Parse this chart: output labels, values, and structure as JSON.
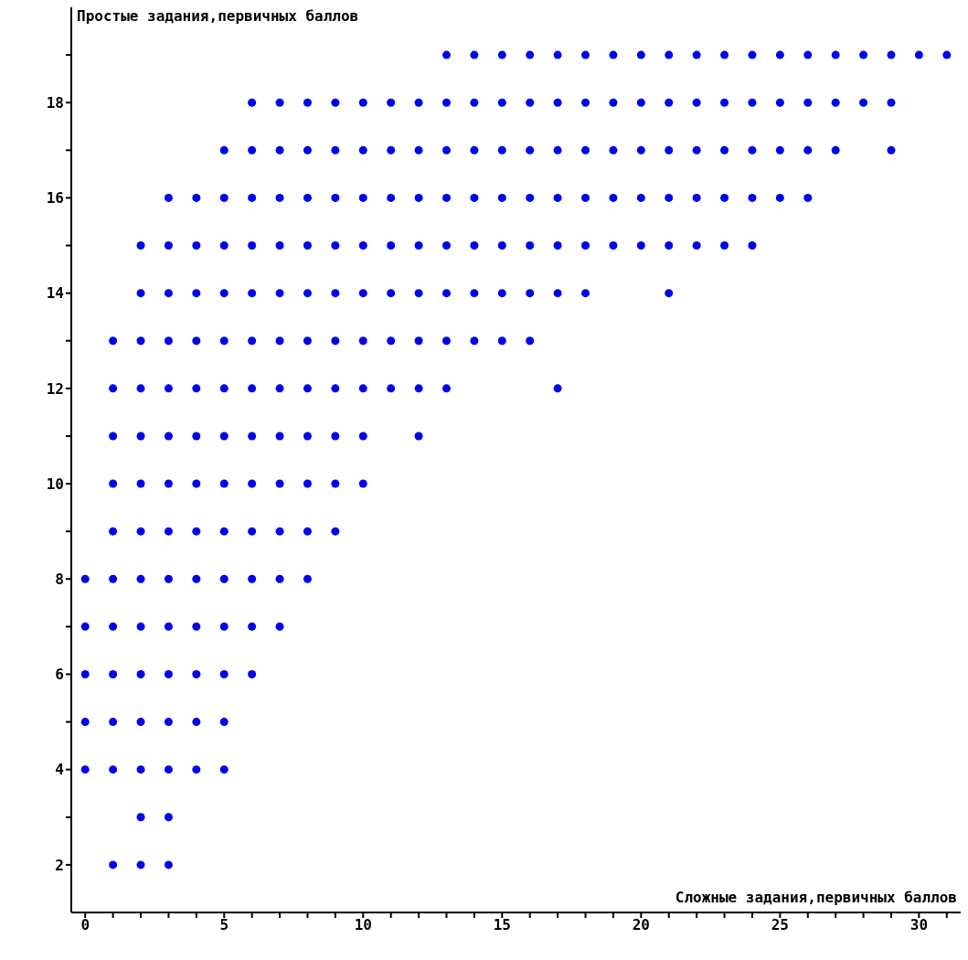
{
  "chart_data": {
    "type": "scatter",
    "xlabel": "Сложные задания,первичных баллов",
    "ylabel": "Простые задания,первичных баллов",
    "color": "#0000f0",
    "marker": "circle",
    "grid": false,
    "legend": false,
    "x": [
      13,
      14,
      15,
      16,
      17,
      18,
      19,
      20,
      21,
      22,
      23,
      24,
      25,
      26,
      27,
      28,
      29,
      30,
      31,
      6,
      7,
      8,
      9,
      10,
      11,
      12,
      13,
      14,
      15,
      16,
      17,
      18,
      19,
      20,
      21,
      22,
      23,
      24,
      25,
      26,
      27,
      28,
      29,
      5,
      6,
      7,
      8,
      9,
      10,
      11,
      12,
      13,
      14,
      15,
      16,
      17,
      18,
      19,
      20,
      21,
      22,
      23,
      24,
      25,
      26,
      27,
      29,
      3,
      4,
      5,
      6,
      7,
      8,
      9,
      10,
      11,
      12,
      13,
      14,
      15,
      16,
      17,
      18,
      19,
      20,
      21,
      22,
      23,
      24,
      25,
      26,
      2,
      3,
      4,
      5,
      6,
      7,
      8,
      9,
      10,
      11,
      12,
      13,
      14,
      15,
      16,
      17,
      18,
      19,
      20,
      21,
      22,
      23,
      24,
      2,
      3,
      4,
      5,
      6,
      7,
      8,
      9,
      10,
      11,
      12,
      13,
      14,
      15,
      16,
      17,
      18,
      21,
      1,
      2,
      3,
      4,
      5,
      6,
      7,
      8,
      9,
      10,
      11,
      12,
      13,
      14,
      15,
      16,
      1,
      2,
      3,
      4,
      5,
      6,
      7,
      8,
      9,
      10,
      11,
      12,
      13,
      17,
      1,
      2,
      3,
      4,
      5,
      6,
      7,
      8,
      9,
      10,
      12,
      1,
      2,
      3,
      4,
      5,
      6,
      7,
      8,
      9,
      10,
      1,
      2,
      3,
      4,
      5,
      6,
      7,
      8,
      9,
      0,
      1,
      2,
      3,
      4,
      5,
      6,
      7,
      8,
      0,
      1,
      2,
      3,
      4,
      5,
      6,
      7,
      0,
      1,
      2,
      3,
      4,
      5,
      6,
      0,
      1,
      2,
      3,
      4,
      5,
      0,
      1,
      2,
      3,
      4,
      5,
      2,
      3,
      1,
      2,
      3
    ],
    "values": [
      19,
      19,
      19,
      19,
      19,
      19,
      19,
      19,
      19,
      19,
      19,
      19,
      19,
      19,
      19,
      19,
      19,
      19,
      19,
      18,
      18,
      18,
      18,
      18,
      18,
      18,
      18,
      18,
      18,
      18,
      18,
      18,
      18,
      18,
      18,
      18,
      18,
      18,
      18,
      18,
      18,
      18,
      18,
      17,
      17,
      17,
      17,
      17,
      17,
      17,
      17,
      17,
      17,
      17,
      17,
      17,
      17,
      17,
      17,
      17,
      17,
      17,
      17,
      17,
      17,
      17,
      17,
      16,
      16,
      16,
      16,
      16,
      16,
      16,
      16,
      16,
      16,
      16,
      16,
      16,
      16,
      16,
      16,
      16,
      16,
      16,
      16,
      16,
      16,
      16,
      16,
      15,
      15,
      15,
      15,
      15,
      15,
      15,
      15,
      15,
      15,
      15,
      15,
      15,
      15,
      15,
      15,
      15,
      15,
      15,
      15,
      15,
      15,
      15,
      14,
      14,
      14,
      14,
      14,
      14,
      14,
      14,
      14,
      14,
      14,
      14,
      14,
      14,
      14,
      14,
      14,
      14,
      13,
      13,
      13,
      13,
      13,
      13,
      13,
      13,
      13,
      13,
      13,
      13,
      13,
      13,
      13,
      13,
      12,
      12,
      12,
      12,
      12,
      12,
      12,
      12,
      12,
      12,
      12,
      12,
      12,
      12,
      11,
      11,
      11,
      11,
      11,
      11,
      11,
      11,
      11,
      11,
      11,
      10,
      10,
      10,
      10,
      10,
      10,
      10,
      10,
      10,
      10,
      9,
      9,
      9,
      9,
      9,
      9,
      9,
      9,
      9,
      8,
      8,
      8,
      8,
      8,
      8,
      8,
      8,
      8,
      7,
      7,
      7,
      7,
      7,
      7,
      7,
      7,
      6,
      6,
      6,
      6,
      6,
      6,
      6,
      5,
      5,
      5,
      5,
      5,
      5,
      4,
      4,
      4,
      4,
      4,
      4,
      3,
      3,
      2,
      2,
      2
    ],
    "xlim": [
      -0.5,
      31.5
    ],
    "xticks": [
      0,
      {
        "value": 1,
        "label": null
      },
      {
        "value": 2,
        "label": null
      },
      {
        "value": 3,
        "label": null
      },
      {
        "value": 4,
        "label": null
      },
      5,
      {
        "value": 6,
        "label": null
      },
      {
        "value": 7,
        "label": null
      },
      {
        "value": 8,
        "label": null
      },
      {
        "value": 9,
        "label": null
      },
      10,
      {
        "value": 11,
        "label": null
      },
      {
        "value": 12,
        "label": null
      },
      {
        "value": 13,
        "label": null
      },
      {
        "value": 14,
        "label": null
      },
      15,
      {
        "value": 16,
        "label": null
      },
      {
        "value": 17,
        "label": null
      },
      {
        "value": 18,
        "label": null
      },
      {
        "value": 19,
        "label": null
      },
      20,
      {
        "value": 21,
        "label": null
      },
      {
        "value": 22,
        "label": null
      },
      {
        "value": 23,
        "label": null
      },
      {
        "value": 24,
        "label": null
      },
      25,
      {
        "value": 26,
        "label": null
      },
      {
        "value": 27,
        "label": null
      },
      {
        "value": 28,
        "label": null
      },
      {
        "value": 29,
        "label": null
      },
      30,
      {
        "value": 31,
        "label": null
      }
    ],
    "ylim": [
      1,
      20
    ],
    "yticks": [
      2,
      {
        "value": 3,
        "label": null
      },
      4,
      {
        "value": 5,
        "label": null
      },
      6,
      {
        "value": 7,
        "label": null
      },
      8,
      {
        "value": 9,
        "label": null
      },
      10,
      {
        "value": 11,
        "label": null
      },
      12,
      {
        "value": 13,
        "label": null
      },
      14,
      {
        "value": 15,
        "label": null
      },
      16,
      {
        "value": 17,
        "label": null
      },
      18,
      {
        "value": 19,
        "label": null
      }
    ]
  }
}
